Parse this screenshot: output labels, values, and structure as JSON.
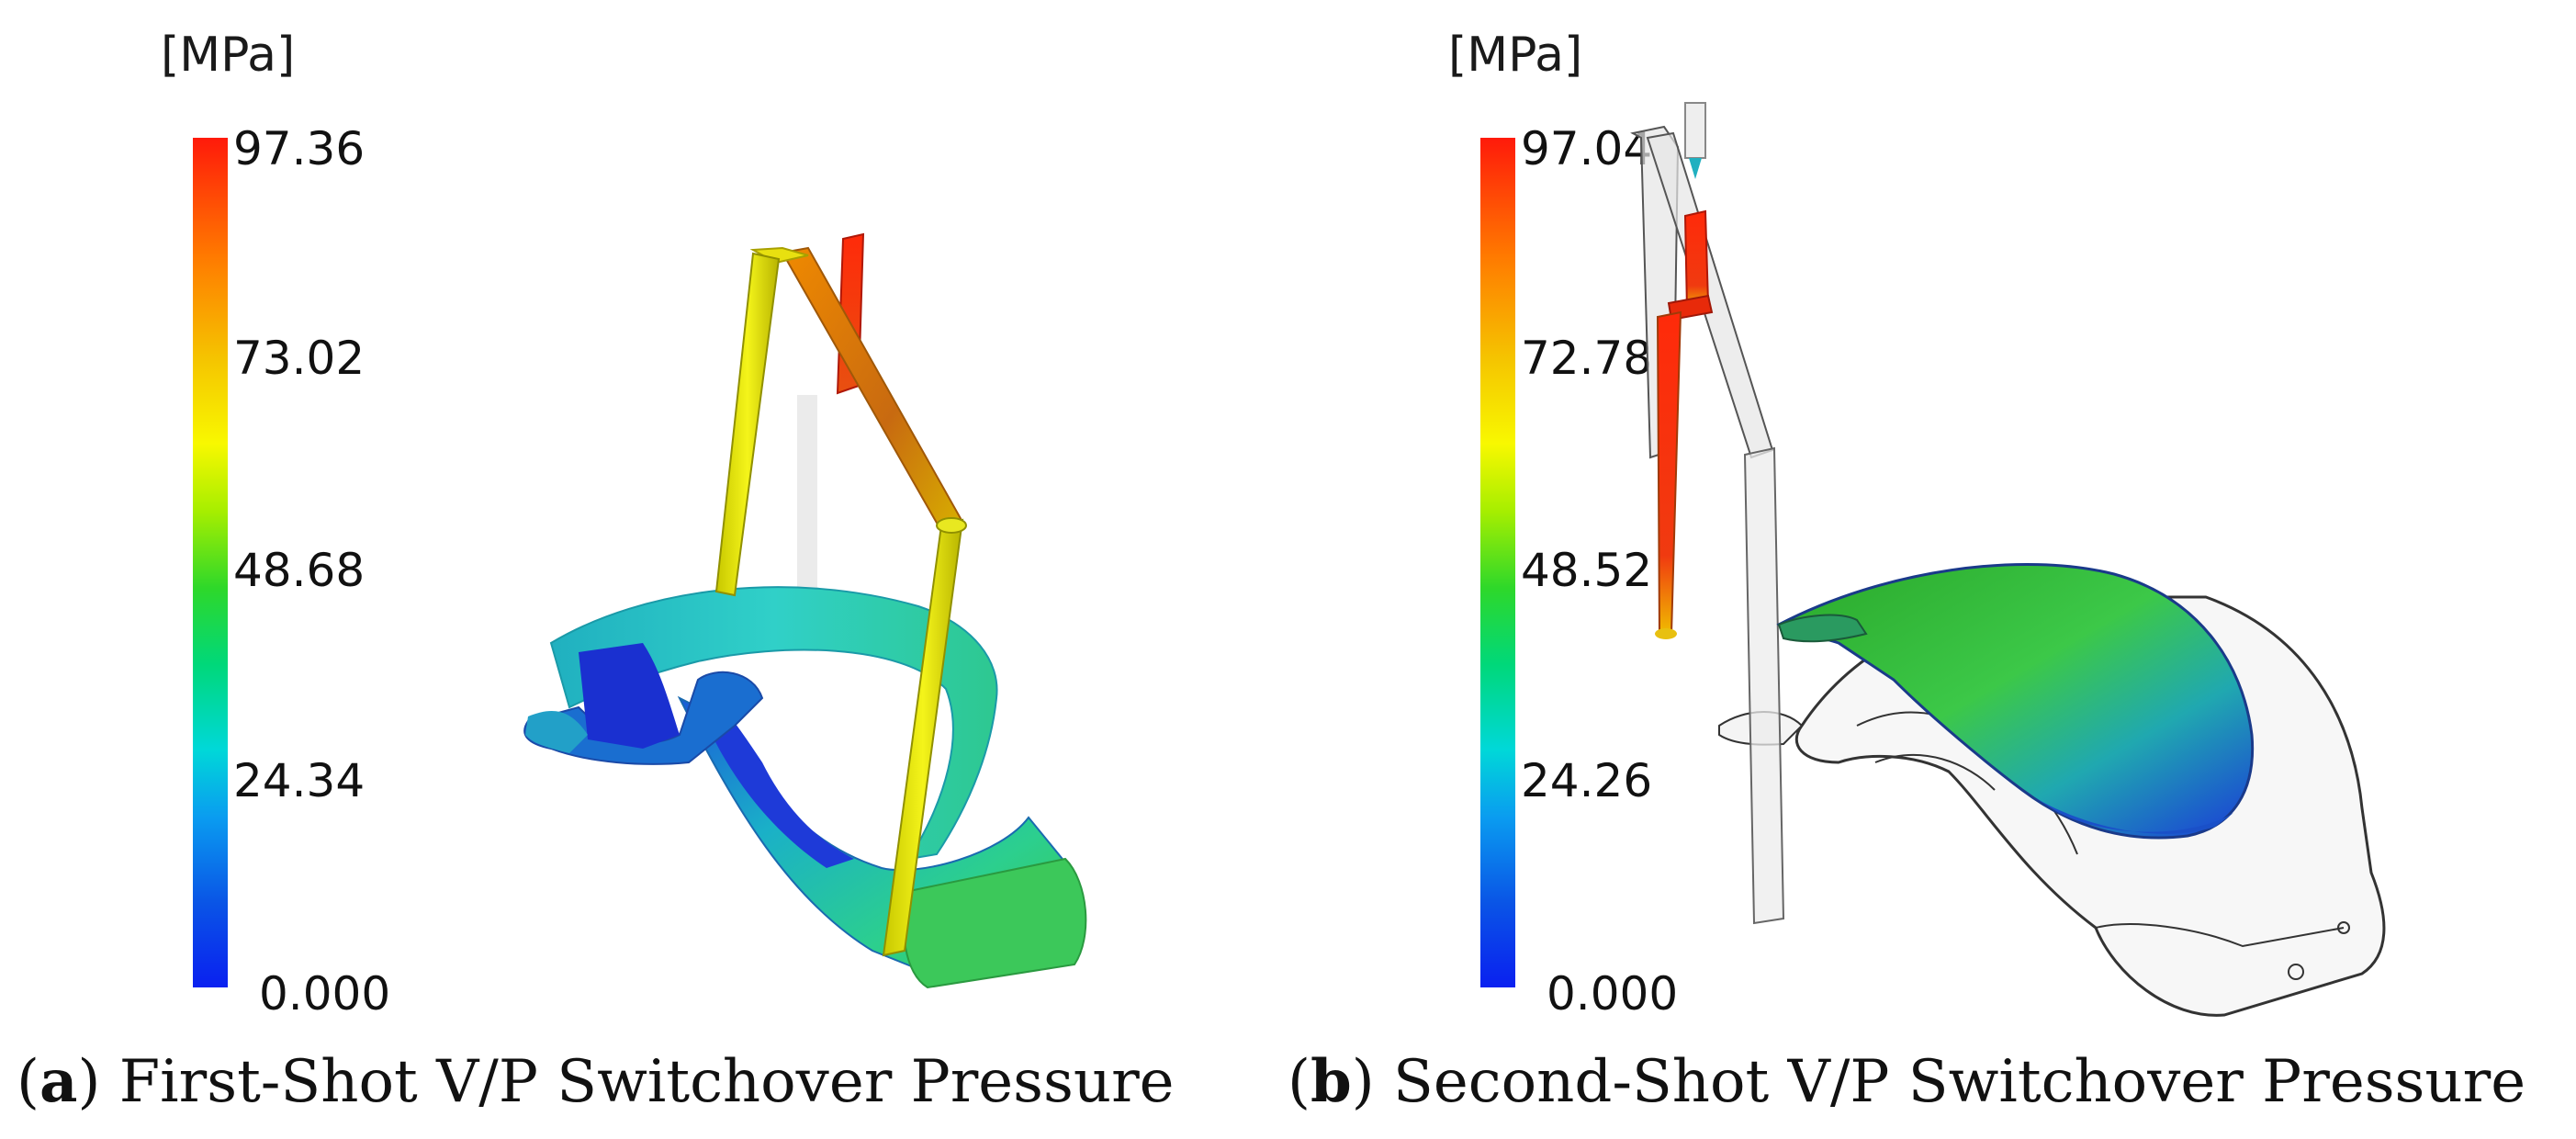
{
  "panels": [
    {
      "id": "a",
      "unit": "[MPa]",
      "scale_ticks": [
        "97.36",
        "73.02",
        "48.68",
        "24.34",
        "0.000"
      ],
      "caption_letter": "a",
      "caption_text": "First-Shot V/P Switchover Pressure"
    },
    {
      "id": "b",
      "unit": "[MPa]",
      "scale_ticks": [
        "97.04",
        "72.78",
        "48.52",
        "24.26",
        "0.000"
      ],
      "caption_letter": "b",
      "caption_text": "Second-Shot V/P Switchover Pressure"
    }
  ],
  "colorscale": {
    "max_color": "#ff1a0a",
    "mid_color": "#2ed82a",
    "min_color": "#0a20f0"
  }
}
